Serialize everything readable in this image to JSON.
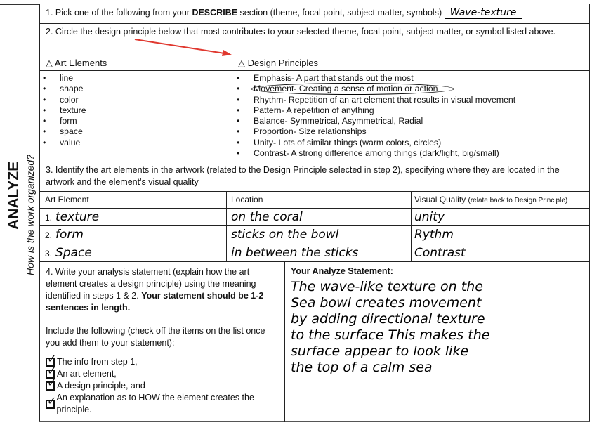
{
  "side": {
    "title": "ANALYZE",
    "subtitle": "How is the work organized?"
  },
  "step1": {
    "prefix": "1. Pick one of the following from your ",
    "bold": "DESCRIBE",
    "suffix": " section (theme,  focal point, subject matter, symbols)",
    "answer": "Wave-texture"
  },
  "step2": {
    "text": "2. Circle the design principle below that most contributes to your selected theme, focal point, subject matter, or symbol listed above."
  },
  "headers": {
    "art_elements": "△  Art Elements",
    "design_principles": "△  Design Principles"
  },
  "art_elements": [
    "line",
    "shape",
    "color",
    "texture",
    "form",
    "space",
    "value"
  ],
  "design_principles": [
    "Emphasis- A part that stands out the most",
    "Movement-  Creating a sense of motion or action",
    "Rhythm- Repetition of an art element that results in visual movement",
    "Pattern- A repetition of anything",
    "Balance- Symmetrical, Asymmetrical, Radial",
    "Proportion- Size relationships",
    "Unity- Lots of similar things (warm colors, circles)",
    "Contrast- A strong difference among things (dark/light, big/small)"
  ],
  "step3": {
    "text": "3. Identify the art elements in the artwork (related  to the Design Principle selected in step 2), specifying where they are located in the artwork and  the element's visual quality"
  },
  "table": {
    "headers": [
      "Art Element",
      "Location",
      "Visual Quality"
    ],
    "quality_note": "(relate back to Design Principle)",
    "rows": [
      {
        "num": "1.",
        "element": "texture",
        "location": "on the coral",
        "quality": "unity"
      },
      {
        "num": "2.",
        "element": "form",
        "location": "sticks on the bowl",
        "quality": "Rythm"
      },
      {
        "num": "3.",
        "element": "Space",
        "location": "in between the sticks",
        "quality": "Contrast"
      }
    ]
  },
  "step4": {
    "text": "4. Write your analysis statement (explain how the art element creates a design principle) using the meaning identified in steps 1 & 2. ",
    "bold": "Your statement should be 1-2 sentences in length.",
    "include": "Include the following (check off the items on the list once you add them to your statement):",
    "checklist": [
      "The info from step 1,",
      "An art element,",
      "A design principle, and",
      "An explanation as to HOW the element creates the principle."
    ]
  },
  "statement": {
    "label": "Your Analyze Statement:",
    "lines": [
      "The wave-like texture on the",
      "Sea bowl creates movement",
      "by adding directional texture",
      "to the surface This makes the",
      "surface appear to look like",
      "the top of a calm sea"
    ]
  },
  "colors": {
    "arrow": "#e0382f"
  }
}
